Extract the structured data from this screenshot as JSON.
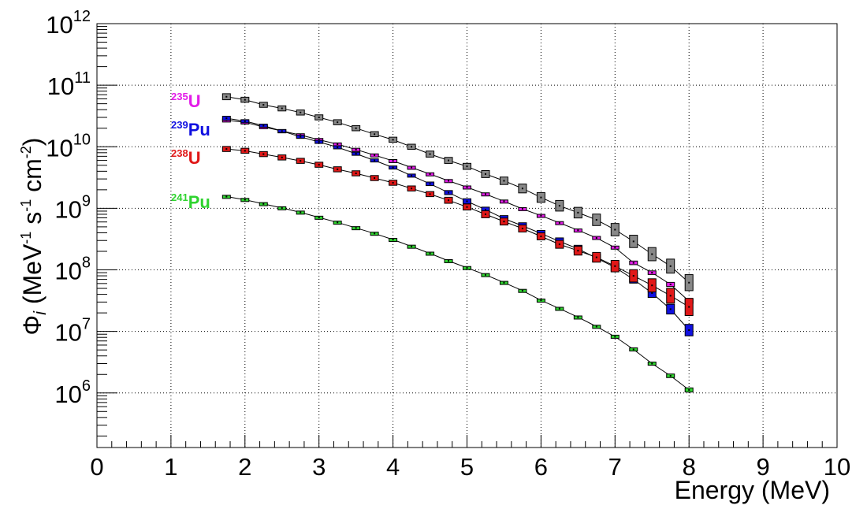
{
  "chart_data": {
    "type": "scatter",
    "xlabel": "Energy (MeV)",
    "ylabel": {
      "symbol": "Φ",
      "subscript": "i",
      "open": " (MeV",
      "exp1": "-1",
      "mid": " s",
      "exp2": "-1",
      "mid2": " cm",
      "exp3": "-2",
      "close": ")"
    },
    "xlim": [
      0,
      10
    ],
    "ylim": [
      130000.0,
      1000000000000.0
    ],
    "yscale": "log",
    "grid": true,
    "x_ticks": [
      "0",
      "1",
      "2",
      "3",
      "4",
      "5",
      "6",
      "7",
      "8",
      "9",
      "10"
    ],
    "y_ticks": [
      {
        "value": 1000000.0,
        "base": "10",
        "exp": "6"
      },
      {
        "value": 10000000.0,
        "base": "10",
        "exp": "7"
      },
      {
        "value": 100000000.0,
        "base": "10",
        "exp": "8"
      },
      {
        "value": 1000000000.0,
        "base": "10",
        "exp": "9"
      },
      {
        "value": 10000000000.0,
        "base": "10",
        "exp": "10"
      },
      {
        "value": 100000000000.0,
        "base": "10",
        "exp": "11"
      },
      {
        "value": 1000000000000.0,
        "base": "10",
        "exp": "12"
      }
    ],
    "x": [
      1.75,
      2.0,
      2.25,
      2.5,
      2.75,
      3.0,
      3.25,
      3.5,
      3.75,
      4.0,
      4.25,
      4.5,
      4.75,
      5.0,
      5.25,
      5.5,
      5.75,
      6.0,
      6.25,
      6.5,
      6.75,
      7.0,
      7.25,
      7.5,
      7.75,
      8.0
    ],
    "series": [
      {
        "color": "#888888",
        "values": [
          65000000000.0,
          58000000000.0,
          48000000000.0,
          42000000000.0,
          36000000000.0,
          30000000000.0,
          25000000000.0,
          20000000000.0,
          16000000000.0,
          13000000000.0,
          10000000000.0,
          7600000000.0,
          6000000000.0,
          4800000000.0,
          3600000000.0,
          2800000000.0,
          2100000000.0,
          1500000000.0,
          1100000000.0,
          850000000.0,
          650000000.0,
          450000000.0,
          290000000.0,
          180000000.0,
          115000000.0,
          62000000.0
        ],
        "rel_err": [
          0.12,
          0.1,
          0.1,
          0.1,
          0.1,
          0.1,
          0.1,
          0.1,
          0.1,
          0.1,
          0.1,
          0.12,
          0.12,
          0.12,
          0.14,
          0.15,
          0.18,
          0.2,
          0.22,
          0.22,
          0.24,
          0.26,
          0.26,
          0.28,
          0.3,
          0.35
        ]
      },
      {
        "label": {
          "mass": "235",
          "element": "U"
        },
        "color": "#e31ce8",
        "values": [
          27000000000.0,
          25000000000.0,
          21000000000.0,
          18000000000.0,
          15500000000.0,
          13000000000.0,
          11000000000.0,
          9000000000.0,
          7300000000.0,
          5900000000.0,
          4600000000.0,
          3600000000.0,
          2800000000.0,
          2200000000.0,
          1700000000.0,
          1300000000.0,
          980000000.0,
          760000000.0,
          580000000.0,
          440000000.0,
          330000000.0,
          230000000.0,
          130000000.0,
          90000000.0,
          58000000.0,
          31000000.0
        ],
        "rel_err": [
          0.05,
          0.05,
          0.05,
          0.05,
          0.05,
          0.05,
          0.05,
          0.05,
          0.05,
          0.05,
          0.05,
          0.05,
          0.05,
          0.05,
          0.05,
          0.05,
          0.05,
          0.05,
          0.05,
          0.05,
          0.06,
          0.06,
          0.07,
          0.07,
          0.08,
          0.08
        ]
      },
      {
        "label": {
          "mass": "239",
          "element": "Pu"
        },
        "color": "#1010e0",
        "values": [
          29000000000.0,
          26000000000.0,
          22000000000.0,
          18000000000.0,
          14500000000.0,
          12000000000.0,
          9800000000.0,
          7700000000.0,
          6000000000.0,
          4600000000.0,
          3400000000.0,
          2500000000.0,
          1800000000.0,
          1300000000.0,
          950000000.0,
          680000000.0,
          520000000.0,
          390000000.0,
          290000000.0,
          220000000.0,
          155000000.0,
          110000000.0,
          70000000.0,
          42000000.0,
          23000000.0,
          10500000.0
        ],
        "rel_err": [
          0.08,
          0.06,
          0.06,
          0.06,
          0.06,
          0.06,
          0.06,
          0.06,
          0.06,
          0.06,
          0.06,
          0.07,
          0.08,
          0.1,
          0.1,
          0.12,
          0.12,
          0.12,
          0.14,
          0.14,
          0.15,
          0.15,
          0.15,
          0.18,
          0.2,
          0.24
        ]
      },
      {
        "label": {
          "mass": "238",
          "element": "U"
        },
        "color": "#e01818",
        "values": [
          9200000000.0,
          8600000000.0,
          7600000000.0,
          6700000000.0,
          5900000000.0,
          5100000000.0,
          4300000000.0,
          3700000000.0,
          3100000000.0,
          2600000000.0,
          2100000000.0,
          1700000000.0,
          1350000000.0,
          1050000000.0,
          800000000.0,
          610000000.0,
          470000000.0,
          350000000.0,
          260000000.0,
          205000000.0,
          160000000.0,
          115000000.0,
          80000000.0,
          56000000.0,
          38000000.0,
          25000000.0
        ],
        "rel_err": [
          0.1,
          0.1,
          0.1,
          0.1,
          0.1,
          0.1,
          0.1,
          0.1,
          0.1,
          0.1,
          0.1,
          0.1,
          0.12,
          0.12,
          0.14,
          0.14,
          0.14,
          0.14,
          0.16,
          0.18,
          0.2,
          0.24,
          0.26,
          0.28,
          0.32,
          0.38
        ]
      },
      {
        "label": {
          "mass": "241",
          "element": "Pu"
        },
        "color": "#2fd32f",
        "values": [
          1550000000.0,
          1380000000.0,
          1180000000.0,
          1010000000.0,
          860000000.0,
          710000000.0,
          590000000.0,
          480000000.0,
          390000000.0,
          310000000.0,
          240000000.0,
          185000000.0,
          140000000.0,
          108000000.0,
          83000000.0,
          62000000.0,
          46000000.0,
          32000000.0,
          23500000.0,
          17000000.0,
          12000000.0,
          8200000.0,
          5100000.0,
          3000000.0,
          1900000.0,
          1120000.0
        ],
        "rel_err": [
          0.05,
          0.05,
          0.05,
          0.05,
          0.05,
          0.05,
          0.05,
          0.05,
          0.05,
          0.05,
          0.05,
          0.05,
          0.05,
          0.05,
          0.05,
          0.05,
          0.05,
          0.05,
          0.05,
          0.05,
          0.05,
          0.06,
          0.06,
          0.06,
          0.07,
          0.08
        ]
      }
    ]
  }
}
